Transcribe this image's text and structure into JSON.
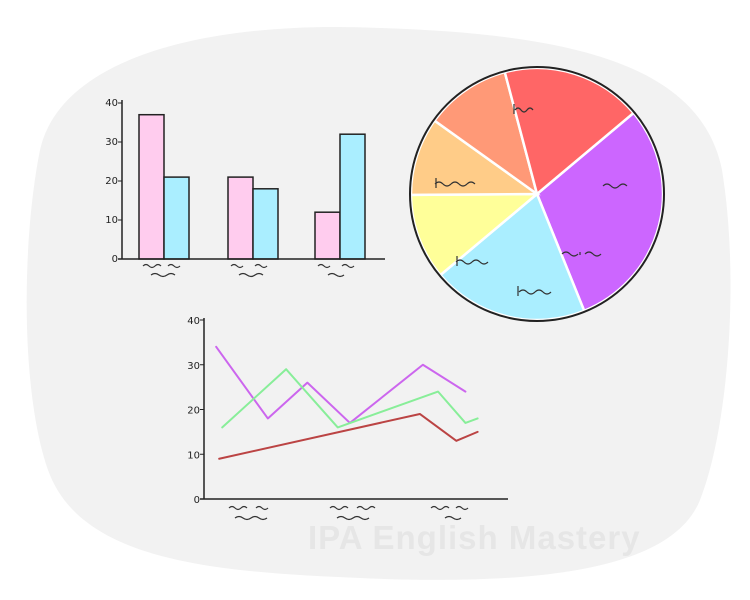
{
  "watermark": "IPA English Mastery",
  "chart_data": [
    {
      "type": "bar",
      "categories": [
        "",
        "",
        ""
      ],
      "series": [
        {
          "values": [
            37,
            21,
            12
          ],
          "color": "#ffccee"
        },
        {
          "values": [
            21,
            18,
            32
          ],
          "color": "#aaeeff"
        }
      ],
      "ylim": [
        0,
        40
      ],
      "yticks": [
        "0",
        "10",
        "20",
        "30",
        "40"
      ]
    },
    {
      "type": "pie",
      "slices": [
        {
          "value": 30,
          "color": "#cc66ff"
        },
        {
          "value": 20,
          "color": "#aaeeff"
        },
        {
          "value": 11,
          "color": "#ffff99"
        },
        {
          "value": 10,
          "color": "#ffcc88"
        },
        {
          "value": 11,
          "color": "#ff9977"
        },
        {
          "value": 18,
          "color": "#ff6666"
        }
      ]
    },
    {
      "type": "line",
      "ylim": [
        0,
        40
      ],
      "yticks": [
        "0",
        "10",
        "20",
        "30",
        "40"
      ],
      "xlim": [
        0,
        10
      ],
      "series": [
        {
          "color": "#cc66ee",
          "x": [
            0.4,
            2.1,
            3.4,
            4.8,
            7.2,
            8.6
          ],
          "y": [
            34,
            18,
            26,
            17,
            30,
            24
          ]
        },
        {
          "color": "#88ee99",
          "x": [
            0.6,
            2.7,
            4.4,
            7.7,
            8.6,
            9.0
          ],
          "y": [
            16,
            29,
            16,
            24,
            17,
            18
          ]
        },
        {
          "color": "#bb4444",
          "x": [
            0.5,
            7.1,
            8.3,
            9.0
          ],
          "y": [
            9,
            19,
            13,
            15
          ]
        }
      ]
    }
  ]
}
